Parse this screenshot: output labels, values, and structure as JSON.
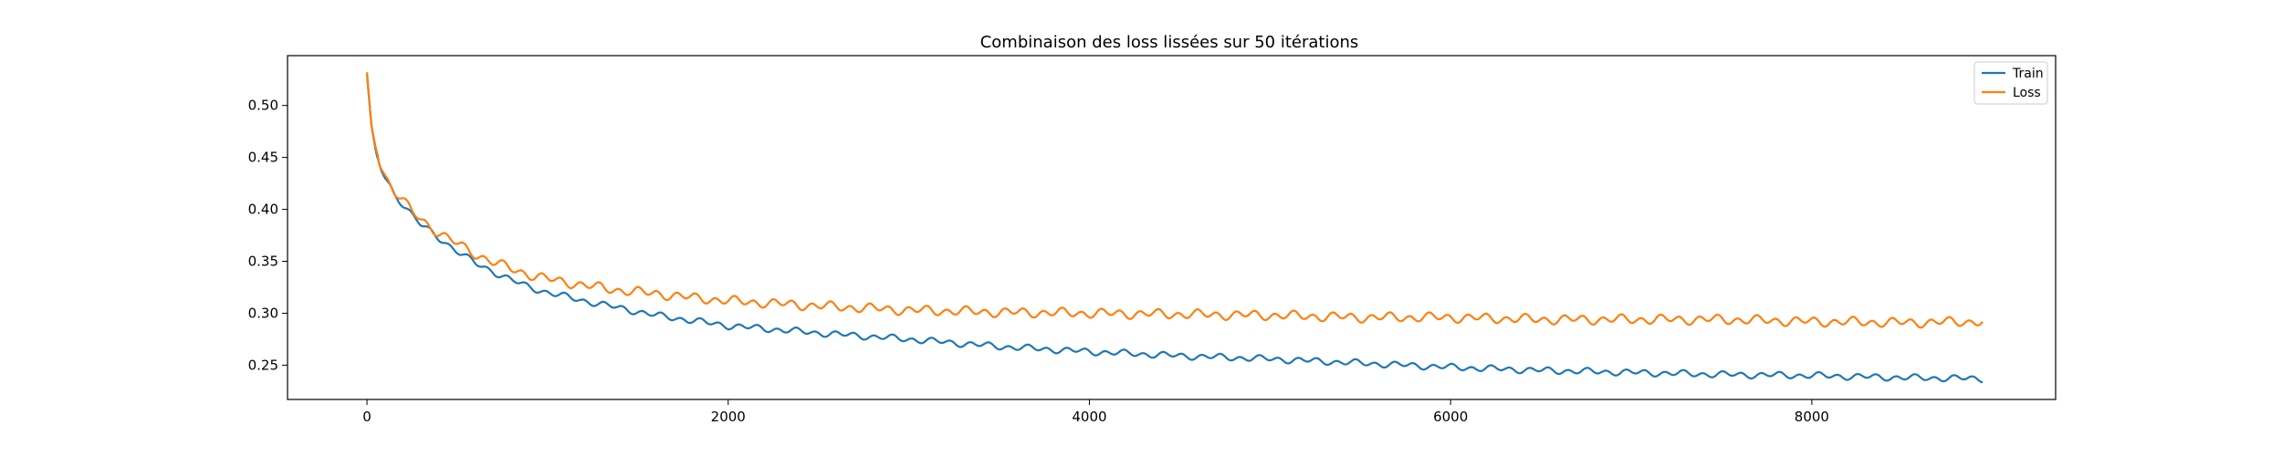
{
  "chart_data": {
    "type": "line",
    "title": "Combinaison des loss lissées sur 50 itérations",
    "xlabel": "",
    "ylabel": "",
    "xlim": [
      -440,
      9350
    ],
    "ylim": [
      0.217,
      0.548
    ],
    "x_ticks": [
      0,
      2000,
      4000,
      6000,
      8000
    ],
    "y_ticks": [
      0.25,
      0.3,
      0.35,
      0.4,
      0.45,
      0.5
    ],
    "grid": false,
    "legend_position": "top-right",
    "series": [
      {
        "name": "Train",
        "color": "#1f77b4",
        "x": [
          0,
          25,
          50,
          75,
          100,
          150,
          200,
          250,
          300,
          400,
          500,
          600,
          700,
          800,
          900,
          1000,
          1200,
          1400,
          1600,
          1800,
          2000,
          2500,
          3000,
          3500,
          4000,
          4500,
          5000,
          5500,
          6000,
          6500,
          7000,
          7500,
          8000,
          8500,
          8950
        ],
        "y": [
          0.53,
          0.48,
          0.455,
          0.44,
          0.43,
          0.415,
          0.405,
          0.395,
          0.385,
          0.372,
          0.36,
          0.348,
          0.34,
          0.332,
          0.325,
          0.32,
          0.312,
          0.305,
          0.298,
          0.293,
          0.288,
          0.281,
          0.275,
          0.268,
          0.263,
          0.259,
          0.256,
          0.252,
          0.248,
          0.245,
          0.243,
          0.241,
          0.24,
          0.238,
          0.237
        ]
      },
      {
        "name": "Loss",
        "color": "#ff7f0e",
        "x": [
          0,
          25,
          50,
          75,
          100,
          150,
          200,
          250,
          300,
          400,
          500,
          600,
          700,
          800,
          900,
          1000,
          1200,
          1400,
          1600,
          1800,
          2000,
          2500,
          3000,
          3500,
          4000,
          4500,
          5000,
          5500,
          6000,
          6500,
          7000,
          7500,
          8000,
          8500,
          8950
        ],
        "y": [
          0.532,
          0.48,
          0.458,
          0.443,
          0.432,
          0.418,
          0.408,
          0.398,
          0.39,
          0.377,
          0.367,
          0.357,
          0.349,
          0.343,
          0.337,
          0.333,
          0.327,
          0.322,
          0.319,
          0.315,
          0.312,
          0.307,
          0.303,
          0.301,
          0.3,
          0.299,
          0.298,
          0.296,
          0.296,
          0.294,
          0.294,
          0.294,
          0.292,
          0.291,
          0.292
        ]
      }
    ]
  }
}
